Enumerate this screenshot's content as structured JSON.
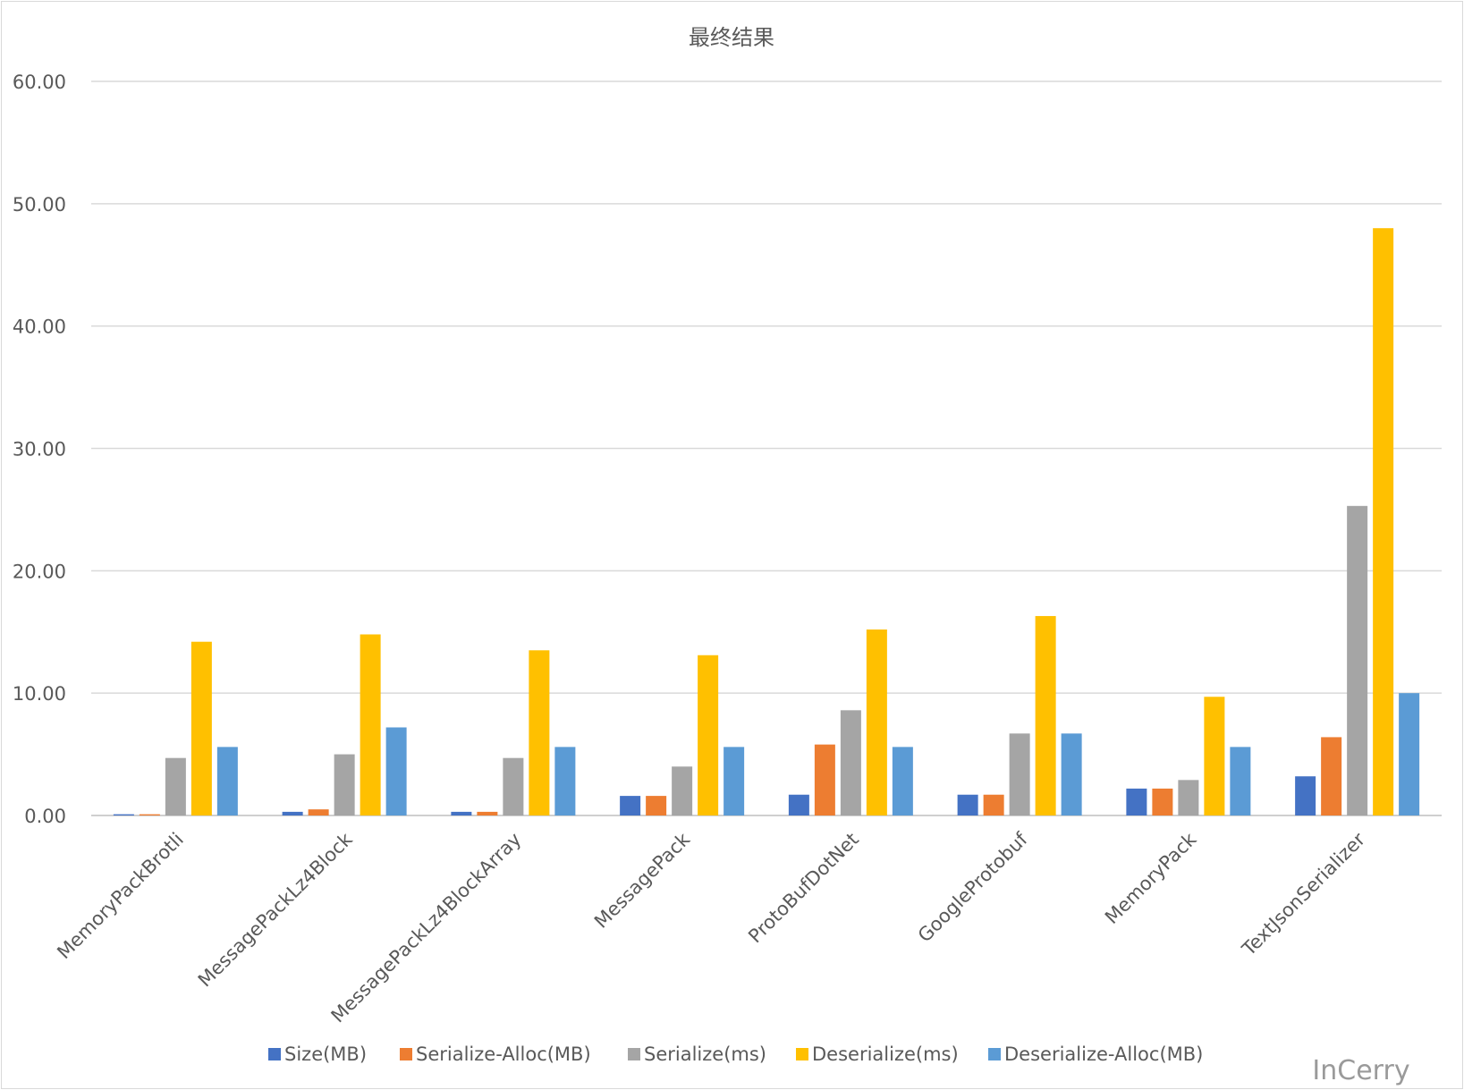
{
  "chart_data": {
    "type": "bar",
    "title": "最终结果",
    "xlabel": "",
    "ylabel": "",
    "ylim": [
      0,
      60
    ],
    "yticks": [
      "0.00",
      "10.00",
      "20.00",
      "30.00",
      "40.00",
      "50.00",
      "60.00"
    ],
    "grid": true,
    "legend": "bottom",
    "categories": [
      "MemoryPackBrotli",
      "MessagePackLz4Block",
      "MessagePackLz4BlockArray",
      "MessagePack",
      "ProtoBufDotNet",
      "GoogleProtobuf",
      "MemoryPack",
      "TextJsonSerializer"
    ],
    "series": [
      {
        "name": "Size(MB)",
        "color": "#4472c4",
        "values": [
          0.1,
          0.3,
          0.3,
          1.6,
          1.7,
          1.7,
          2.2,
          3.2
        ]
      },
      {
        "name": "Serialize-Alloc(MB)",
        "color": "#ed7d31",
        "values": [
          0.1,
          0.5,
          0.3,
          1.6,
          5.8,
          1.7,
          2.2,
          6.4
        ]
      },
      {
        "name": "Serialize(ms)",
        "color": "#a5a5a5",
        "values": [
          4.7,
          5.0,
          4.7,
          4.0,
          8.6,
          6.7,
          2.9,
          25.3
        ]
      },
      {
        "name": "Deserialize(ms)",
        "color": "#ffc000",
        "values": [
          14.2,
          14.8,
          13.5,
          13.1,
          15.2,
          16.3,
          9.7,
          48.0
        ]
      },
      {
        "name": "Deserialize-Alloc(MB)",
        "color": "#5b9bd5",
        "values": [
          5.6,
          7.2,
          5.6,
          5.6,
          5.6,
          6.7,
          5.6,
          10.0
        ]
      }
    ]
  },
  "watermark": "InCerry"
}
